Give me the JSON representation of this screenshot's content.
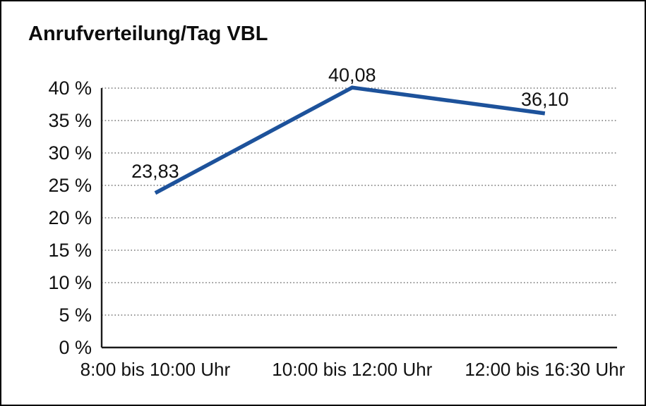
{
  "title": "Anrufverteilung/Tag VBL",
  "colors": {
    "line": "#1D529B",
    "grid": "#5a5a5a",
    "axis": "#1a1a1a",
    "text": "#111111",
    "background": "#ffffff",
    "border": "#000000"
  },
  "chart_data": {
    "type": "line",
    "title": "Anrufverteilung/Tag VBL",
    "categories": [
      "8:00 bis 10:00 Uhr",
      "10:00 bis 12:00 Uhr",
      "12:00 bis 16:30 Uhr"
    ],
    "values": [
      23.83,
      40.08,
      36.1
    ],
    "value_labels": [
      "23,83",
      "40,08",
      "36,10"
    ],
    "xlabel": "",
    "ylabel": "",
    "ylim": [
      0,
      40
    ],
    "ytick_step": 5,
    "ytick_suffix": " %",
    "grid": "horizontal-dotted",
    "legend": "none",
    "markers": "none"
  }
}
